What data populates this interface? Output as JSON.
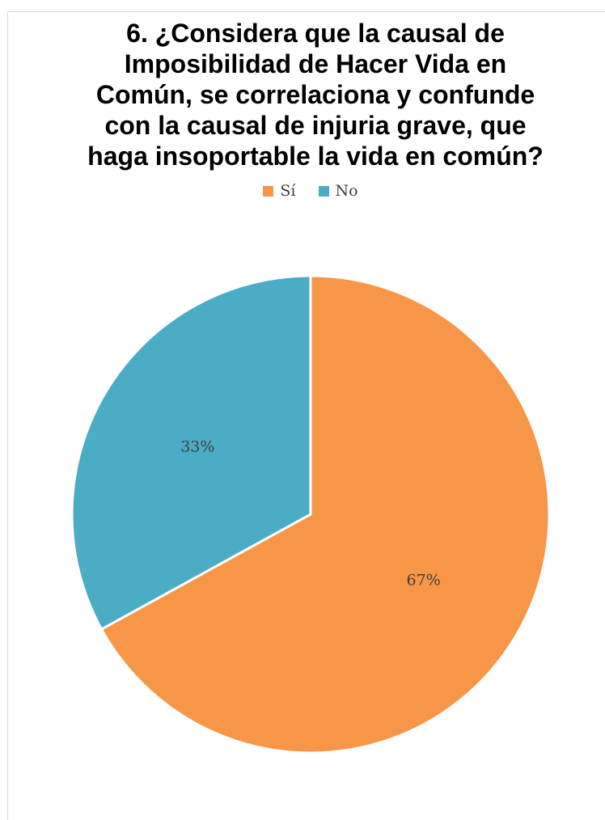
{
  "chart_data": {
    "type": "pie",
    "title": "6. ¿Considera que la causal de\nImposibilidad de Hacer Vida en\nComún, se correlaciona y confunde\ncon la causal de injuria grave, que\nhaga insoportable la vida en común?",
    "categories": [
      "Sí",
      "No"
    ],
    "values": [
      67,
      33
    ],
    "data_labels": [
      "67%",
      "33%"
    ],
    "colors": [
      "#F79646",
      "#4BACC6"
    ],
    "legend_position": "top",
    "start_angle_deg": 0,
    "direction": "clockwise"
  }
}
